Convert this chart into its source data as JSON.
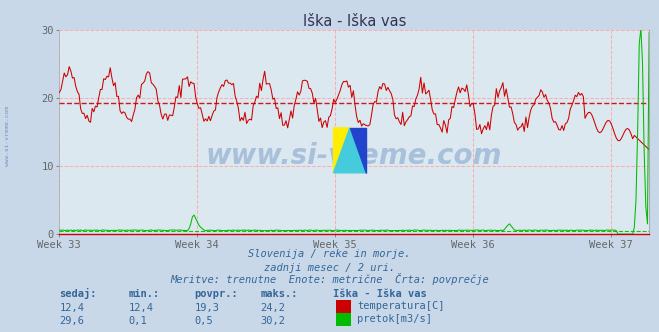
{
  "title": "Iška - Iška vas",
  "bg_color": "#c8d8e8",
  "plot_bg_color": "#dce8f0",
  "grid_color_h": "#ff9999",
  "grid_color_v": "#ff9999",
  "grid_color_minor": "#dddddd",
  "temp_color": "#cc0000",
  "flow_color": "#00bb00",
  "avg_temp_color": "#cc0000",
  "avg_flow_color": "#00bb00",
  "avg_temp": 19.3,
  "avg_flow": 0.5,
  "ylim": [
    0,
    30
  ],
  "yticks": [
    0,
    10,
    20,
    30
  ],
  "weeks": [
    "Week 33",
    "Week 34",
    "Week 35",
    "Week 36",
    "Week 37"
  ],
  "n_points": 360,
  "subtitle1": "Slovenija / reke in morje.",
  "subtitle2": "zadnji mesec / 2 uri.",
  "subtitle3": "Meritve: trenutne  Enote: metrične  Črta: povprečje",
  "table_headers": [
    "sedaj:",
    "min.:",
    "povpr.:",
    "maks.:",
    "Iška - Iška vas"
  ],
  "table_row1": [
    "12,4",
    "12,4",
    "19,3",
    "24,2"
  ],
  "table_row2": [
    "29,6",
    "0,1",
    "0,5",
    "30,2"
  ],
  "legend1": "temperatura[C]",
  "legend2": "pretok[m3/s]",
  "watermark": "www.si-vreme.com",
  "watermark_color": "#3366aa",
  "left_text": "www.si-vreme.com",
  "text_color": "#336699"
}
